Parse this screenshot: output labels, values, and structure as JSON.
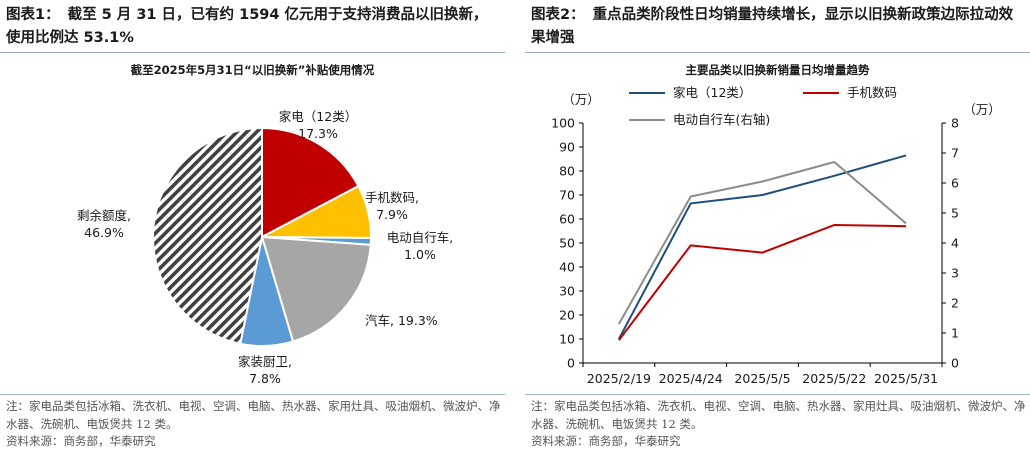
{
  "left": {
    "fig_label": "图表1：",
    "heading": "截至 5 月 31 日，已有约 1594 亿元用于支持消费品以旧换新，使用比例达 53.1%",
    "notes": "注：家电品类包括冰箱、洗衣机、电视、空调、电脑、热水器、家用灶具、吸油烟机、微波炉、净水器、洗碗机、电饭煲共 12 类。",
    "source": "资料来源：商务部，华泰研究"
  },
  "right": {
    "fig_label": "图表2：",
    "heading": "重点品类阶段性日均销量持续增长，显示以旧换新政策边际拉动效果增强",
    "notes": "注：家电品类包括冰箱、洗衣机、电视、空调、电脑、热水器、家用灶具、吸油烟机、微波炉、净水器、洗碗机、电饭煲共 12 类。",
    "source": "资料来源：商务部，华泰研究"
  },
  "chart_data": [
    {
      "type": "pie",
      "title": "截至2025年5月31日“以旧换新”补贴使用情况",
      "slices": [
        {
          "name": "家电（12类）",
          "label": "家电（12类）",
          "value_label": "17.3%",
          "value": 17.3,
          "color": "#c00000",
          "hatched": false
        },
        {
          "name": "手机数码",
          "label": "手机数码,",
          "value_label": "7.9%",
          "value": 7.9,
          "color": "#ffc000",
          "hatched": false
        },
        {
          "name": "电动自行车",
          "label": "电动自行车,",
          "value_label": "1.0%",
          "value": 1.0,
          "color": "#5b9bd5",
          "hatched": false
        },
        {
          "name": "汽车",
          "label": "汽车, 19.3%",
          "value_label": "",
          "value": 19.3,
          "color": "#a6a6a6",
          "hatched": false
        },
        {
          "name": "家装厨卫",
          "label": "家装厨卫,",
          "value_label": "7.8%",
          "value": 7.8,
          "color": "#5b9bd5",
          "hatched": false
        },
        {
          "name": "剩余额度",
          "label": "剩余额度,",
          "value_label": "46.9%",
          "value": 46.9,
          "color": "#404040",
          "hatched": true
        }
      ]
    },
    {
      "type": "line",
      "title": "主要品类以旧换新销量日均增量趋势",
      "x": [
        "2025/2/19",
        "2025/4/24",
        "2025/5/5",
        "2025/5/22",
        "2025/5/31"
      ],
      "y_left_unit": "（万）",
      "y_right_unit": "（万）",
      "ylim_left": [
        0,
        100
      ],
      "ylim_right": [
        0,
        8
      ],
      "yticks_left": [
        "0",
        "10",
        "20",
        "30",
        "40",
        "50",
        "60",
        "70",
        "80",
        "90",
        "100"
      ],
      "yticks_right": [
        "0",
        "1",
        "2",
        "3",
        "4",
        "5",
        "6",
        "7",
        "8"
      ],
      "grid": false,
      "legend_position": "top",
      "series": [
        {
          "name": "家电（12类）",
          "axis": "left",
          "color": "#1f4e79",
          "values": [
            10,
            66.5,
            70,
            78,
            86.5
          ]
        },
        {
          "name": "手机数码",
          "axis": "left",
          "color": "#c00000",
          "values": [
            9.5,
            49,
            46,
            57.5,
            57
          ]
        },
        {
          "name": "电动自行车(右轴)",
          "axis": "right",
          "color": "#8c8c8c",
          "values": [
            1.3,
            5.55,
            6.05,
            6.7,
            4.65
          ]
        }
      ]
    }
  ]
}
